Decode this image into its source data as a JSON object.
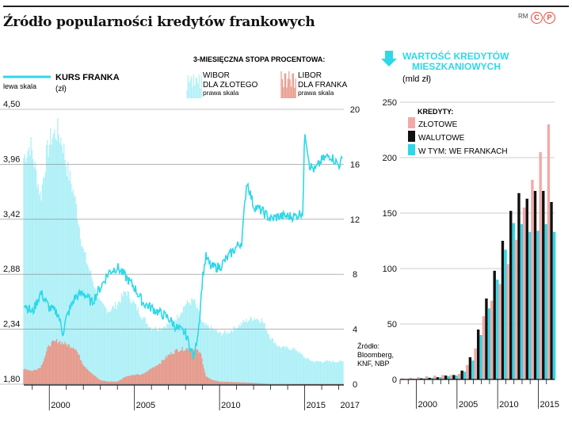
{
  "header": {
    "title": "Źródło popularności kredytów frankowych",
    "credit": "RM",
    "logo_left": "C",
    "logo_right": "P"
  },
  "left_chart": {
    "kurs_label": "KURS FRANKA",
    "kurs_unit": "(zł)",
    "lewa_skala": "lewa skala",
    "rate_title": "3-MIESIĘCZNA STOPA PROCENTOWA:",
    "wibor_label_1": "WIBOR",
    "wibor_label_2": "DLA ZŁOTEGO",
    "wibor_scale": "prawa skala",
    "libor_label_1": "LIBOR",
    "libor_label_2": "DLA FRANKA",
    "libor_scale": "prawa skala",
    "source_1": "Źródło:",
    "source_2": "Bloomberg,",
    "source_3": "KNF, NBP"
  },
  "right_chart": {
    "title_1": "WARTOŚĆ KREDYTÓW",
    "title_2": "MIESZKANIOWYCH",
    "unit": "(mld zł)",
    "legend_title": "KREDYTY:",
    "legend_zlotowe": "ZŁOTOWE",
    "legend_walutowe": "WALUTOWE",
    "legend_frank": "W TYM: WE FRANKACH"
  },
  "colors": {
    "cyan": "#2fd8e8",
    "wibor_fill": "#aef0f7",
    "libor_fill": "#e8998a",
    "zlotowe": "#f2aaa8",
    "walutowe": "#111111",
    "frank": "#2fd8e8",
    "title_accent": "#2fd8e8"
  },
  "chart_data": [
    {
      "type": "line",
      "series": [
        {
          "name": "KURS FRANKA",
          "axis": "left",
          "x": [
            1998.5,
            1999.0,
            1999.5,
            2000.0,
            2000.5,
            2000.8,
            2001.0,
            2001.5,
            2002.0,
            2002.5,
            2003.0,
            2003.5,
            2004.0,
            2004.5,
            2005.0,
            2005.5,
            2006.0,
            2006.5,
            2007.0,
            2007.5,
            2008.0,
            2008.3,
            2008.5,
            2008.8,
            2009.0,
            2009.2,
            2009.5,
            2010.0,
            2010.5,
            2011.0,
            2011.3,
            2011.6,
            2012.0,
            2012.5,
            2013.0,
            2013.5,
            2014.0,
            2014.5,
            2014.9,
            2015.0,
            2015.3,
            2015.6,
            2016.0,
            2016.5,
            2017.0,
            2017.2
          ],
          "values": [
            2.6,
            2.5,
            2.7,
            2.55,
            2.5,
            2.3,
            2.45,
            2.65,
            2.7,
            2.6,
            2.75,
            2.9,
            2.95,
            2.85,
            2.75,
            2.6,
            2.55,
            2.5,
            2.45,
            2.35,
            2.3,
            2.15,
            2.05,
            2.4,
            2.85,
            3.05,
            2.95,
            2.95,
            3.05,
            3.15,
            3.2,
            3.8,
            3.55,
            3.5,
            3.42,
            3.45,
            3.45,
            3.45,
            3.5,
            4.3,
            3.95,
            3.9,
            4.0,
            4.05,
            3.95,
            4.0
          ]
        },
        {
          "name": "WIBOR DLA ZŁOTEGO",
          "axis": "right",
          "x": [
            1998.5,
            1998.9,
            1999.2,
            1999.5,
            1999.8,
            2000.1,
            2000.5,
            2000.8,
            2001.0,
            2001.5,
            2002.0,
            2002.5,
            2003.0,
            2003.5,
            2004.0,
            2004.5,
            2005.0,
            2005.5,
            2006.0,
            2006.5,
            2007.0,
            2007.5,
            2008.0,
            2008.5,
            2009.0,
            2009.5,
            2010.0,
            2010.5,
            2011.0,
            2011.5,
            2012.0,
            2012.5,
            2013.0,
            2013.5,
            2014.0,
            2014.5,
            2015.0,
            2015.5,
            2016.0,
            2016.5,
            2017.0,
            2017.3
          ],
          "values": [
            17.0,
            18.0,
            16.0,
            14.0,
            17.0,
            18.5,
            19.0,
            18.0,
            16.5,
            14.0,
            10.0,
            8.0,
            6.0,
            5.5,
            6.0,
            7.0,
            6.0,
            5.0,
            4.2,
            4.2,
            4.5,
            5.0,
            6.0,
            6.3,
            4.5,
            4.2,
            3.8,
            3.9,
            4.3,
            4.7,
            5.0,
            4.8,
            3.5,
            2.8,
            2.7,
            2.6,
            2.0,
            1.7,
            1.7,
            1.7,
            1.7,
            1.7
          ]
        },
        {
          "name": "LIBOR DLA FRANKA",
          "axis": "right",
          "x": [
            1998.5,
            1999.0,
            1999.5,
            2000.0,
            2000.5,
            2001.0,
            2001.5,
            2002.0,
            2002.5,
            2003.0,
            2003.5,
            2004.0,
            2004.5,
            2005.0,
            2005.5,
            2006.0,
            2006.5,
            2007.0,
            2007.5,
            2008.0,
            2008.5,
            2008.9,
            2009.2,
            2009.5,
            2010.0,
            2011.0,
            2012.0,
            2013.0,
            2014.0,
            2014.9,
            2015.1,
            2016.0,
            2017.0,
            2017.3
          ],
          "values": [
            1.2,
            1.0,
            1.3,
            3.0,
            3.3,
            3.0,
            2.8,
            1.5,
            0.8,
            0.3,
            0.2,
            0.2,
            0.6,
            0.7,
            0.75,
            1.2,
            1.6,
            2.2,
            2.6,
            2.7,
            2.7,
            2.3,
            0.6,
            0.35,
            0.2,
            0.15,
            0.1,
            0.0,
            0.0,
            -0.1,
            -0.8,
            -0.75,
            -0.75,
            -0.75
          ]
        }
      ],
      "ylabel": "KURS FRANKA (zł)",
      "ylim": [
        1.8,
        4.5
      ],
      "yticks": [
        "4,50",
        "3,96",
        "3,42",
        "2,88",
        "2,34",
        "1,80"
      ],
      "y2lim": [
        0,
        20
      ],
      "y2ticks": [
        "20",
        "16",
        "12",
        "8",
        "4",
        "0"
      ],
      "xlim": [
        1998.5,
        2017.3
      ],
      "xticks": [
        "2000",
        "2005",
        "2010",
        "2015",
        "2017"
      ]
    },
    {
      "type": "bar",
      "categories": [
        1998,
        1999,
        2000,
        2001,
        2002,
        2003,
        2004,
        2005,
        2006,
        2007,
        2008,
        2009,
        2010,
        2011,
        2012,
        2013,
        2014,
        2015,
        2016
      ],
      "series": [
        {
          "name": "ZŁOTOWE",
          "values": [
            1,
            1.5,
            2,
            3,
            3.5,
            4,
            4,
            5,
            13,
            28,
            57,
            71,
            86,
            104,
            126,
            155,
            180,
            205,
            230
          ]
        },
        {
          "name": "WALUTOWE",
          "values": [
            0,
            0.5,
            1,
            1.5,
            2,
            3.5,
            4,
            8,
            20,
            45,
            73,
            98,
            125,
            152,
            168,
            163,
            170,
            170,
            160
          ]
        },
        {
          "name": "W TYM: WE FRANKACH",
          "values": [
            0,
            0.5,
            1,
            1.5,
            2,
            3,
            3.5,
            7,
            17,
            40,
            64,
            90,
            117,
            141,
            140,
            133,
            134,
            140,
            133
          ]
        }
      ],
      "ylim": [
        0,
        250
      ],
      "yticks": [
        "250",
        "200",
        "150",
        "100",
        "50",
        "0"
      ],
      "xticks": [
        "2000",
        "2005",
        "2010",
        "2015"
      ]
    }
  ]
}
